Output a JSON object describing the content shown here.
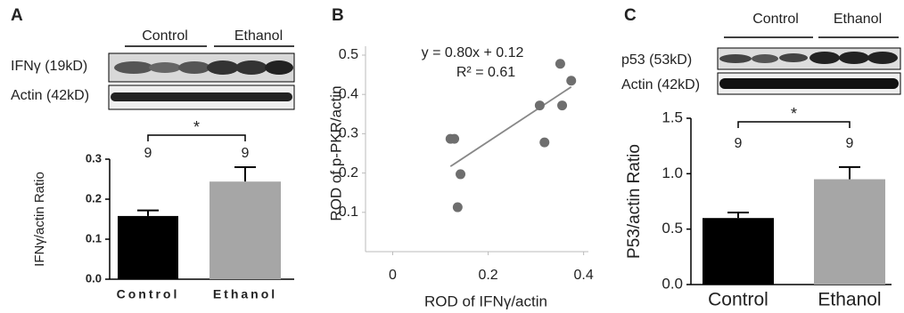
{
  "chart_data": [
    {
      "panel": "A",
      "type": "bar",
      "blot_labels": [
        "IFNγ (19kD)",
        "Actin (42kD)"
      ],
      "blot_groups": [
        "Control",
        "Ethanol"
      ],
      "ylabel": "IFNγ/actin Ratio",
      "categories": [
        "Control",
        "Ethanol"
      ],
      "values": [
        0.158,
        0.244
      ],
      "errors": [
        0.014,
        0.036
      ],
      "n_labels": [
        "9",
        "9"
      ],
      "significance": "*",
      "colors": [
        "#000000",
        "#a6a6a6"
      ],
      "ylim": [
        0,
        0.3
      ],
      "yticks": [
        {
          "value": 0,
          "label": "0.0"
        },
        0.1,
        0.2,
        0.3
      ]
    },
    {
      "panel": "B",
      "type": "scatter",
      "xlabel": "ROD of IFNγ/actin",
      "ylabel": "ROD of p-PKR/actin",
      "x": [
        0.121,
        0.129,
        0.142,
        0.136,
        0.308,
        0.318,
        0.351,
        0.374,
        0.355
      ],
      "y": [
        0.287,
        0.287,
        0.197,
        0.113,
        0.372,
        0.278,
        0.478,
        0.435,
        0.372
      ],
      "color": "#6e6e6e",
      "xlim": [
        -0.057,
        0.41
      ],
      "ylim": [
        0,
        0.5
      ],
      "xticks": [
        0,
        0.2,
        0.4
      ],
      "yticks": [
        0.1,
        0.2,
        0.3,
        0.4,
        0.5
      ],
      "trendline": {
        "slope": 0.8,
        "intercept": 0.12,
        "label": "y = 0.80x + 0.12",
        "r2_label": "R² = 0.61"
      }
    },
    {
      "panel": "C",
      "type": "bar",
      "blot_labels": [
        "p53 (53kD)",
        "Actin (42kD)"
      ],
      "blot_groups": [
        "Control",
        "Ethanol"
      ],
      "ylabel": "P53/actin Ratio",
      "categories": [
        "Control",
        "Ethanol"
      ],
      "values": [
        0.6,
        0.95
      ],
      "errors": [
        0.05,
        0.11
      ],
      "n_labels": [
        "9",
        "9"
      ],
      "significance": "*",
      "colors": [
        "#000000",
        "#a6a6a6"
      ],
      "ylim": [
        0,
        1.5
      ],
      "yticks": [
        {
          "value": 0,
          "label": "0.0"
        },
        0.5,
        {
          "value": 1,
          "label": "1.0"
        },
        1.5
      ]
    }
  ]
}
